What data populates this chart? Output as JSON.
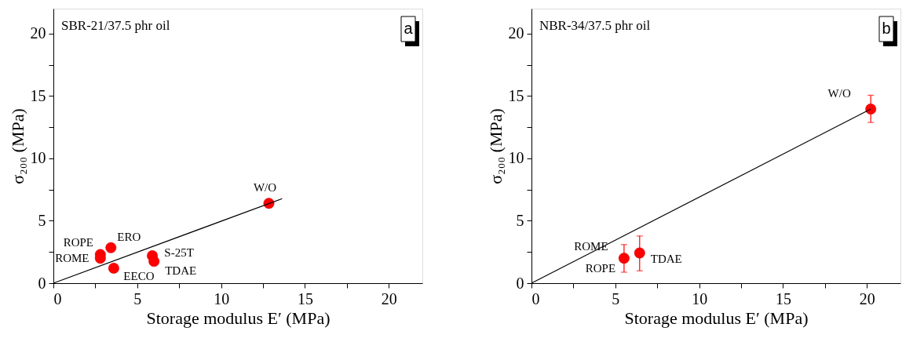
{
  "chart_data": [
    {
      "type": "scatter",
      "xlabel": "Storage modulus E′ (MPa)",
      "ylabel": "σ₂₀₀ (MPa)",
      "xlim": [
        0,
        22
      ],
      "ylim": [
        0,
        22
      ],
      "xticks": [
        0,
        {
          "value": 2.5,
          "label": null
        },
        5,
        {
          "value": 7.5,
          "label": null
        },
        10,
        {
          "value": 12.5,
          "label": null
        },
        15,
        {
          "value": 17.5,
          "label": null
        },
        20
      ],
      "yticks": [
        0,
        {
          "value": 2.5,
          "label": null
        },
        5,
        {
          "value": 7.5,
          "label": null
        },
        10,
        {
          "value": 12.5,
          "label": null
        },
        15,
        {
          "value": 17.5,
          "label": null
        },
        20
      ],
      "marker": "circle",
      "grid": false,
      "series": [
        {
          "color": "#ff0000",
          "x": [
            12.85,
            3.43,
            2.8,
            2.8,
            5.9,
            6.0,
            3.6
          ],
          "values": [
            6.4,
            2.84,
            2.3,
            2.0,
            2.2,
            1.75,
            1.2
          ]
        },
        {
          "type": "line",
          "color": "#000000",
          "marker": "none",
          "x": [
            0,
            13.64
          ],
          "values": [
            0,
            6.77
          ]
        }
      ],
      "annotations": [
        "SBR-21/37.5 phr oil",
        "a",
        {
          "text": "W/O",
          "x": 12.85,
          "y": 6.4
        },
        {
          "text": "ERO",
          "x": 3.43,
          "y": 2.84
        },
        {
          "text": "ROPE",
          "x": 2.8,
          "y": 2.3
        },
        {
          "text": "ROME",
          "x": 2.8,
          "y": 2.0
        },
        {
          "text": "S-25T",
          "x": 5.9,
          "y": 2.2
        },
        {
          "text": "TDAE",
          "x": 6.0,
          "y": 1.75
        },
        {
          "text": "EECO",
          "x": 3.6,
          "y": 1.2
        }
      ]
    },
    {
      "type": "scatter",
      "xlabel": "Storage modulus E′ (MPa)",
      "ylabel": "σ₂₀₀ (MPa)",
      "xlim": [
        0,
        22
      ],
      "ylim": [
        0,
        22
      ],
      "xticks": [
        0,
        {
          "value": 2.5,
          "label": null
        },
        5,
        {
          "value": 7.5,
          "label": null
        },
        10,
        {
          "value": 12.5,
          "label": null
        },
        15,
        {
          "value": 17.5,
          "label": null
        },
        20
      ],
      "yticks": [
        0,
        {
          "value": 2.5,
          "label": null
        },
        5,
        {
          "value": 7.5,
          "label": null
        },
        10,
        {
          "value": 12.5,
          "label": null
        },
        15,
        {
          "value": 17.5,
          "label": null
        },
        20
      ],
      "marker": "circle",
      "grid": false,
      "series": [
        {
          "color": "#ff0000",
          "x": [
            20.23,
            5.52,
            6.45
          ],
          "values": [
            13.95,
            2.0,
            2.42
          ],
          "errors": [
            [
              12.88,
              15.06
            ],
            [
              0.88,
              3.09
            ],
            [
              0.99,
              3.78
            ]
          ]
        },
        {
          "type": "line",
          "color": "#000000",
          "marker": "none",
          "x": [
            0,
            20.23
          ],
          "values": [
            0,
            13.95
          ]
        }
      ],
      "annotations": [
        "NBR-34/37.5 phr oil",
        "b",
        {
          "text": "W/O",
          "x": 20.23,
          "y": 13.95
        },
        {
          "text": "ROME",
          "x": 5.52,
          "y": 2.0
        },
        {
          "text": "ROPE",
          "x": 5.52,
          "y": 2.0
        },
        {
          "text": "TDAE",
          "x": 6.45,
          "y": 2.42
        }
      ]
    }
  ]
}
